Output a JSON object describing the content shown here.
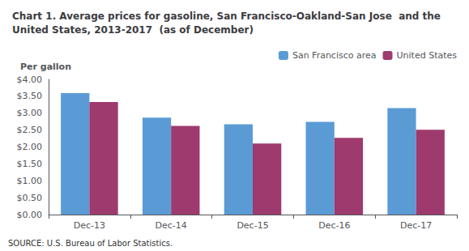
{
  "chart_data": {
    "type": "bar",
    "title": "Chart 1. Average prices for gasoline, San Francisco-Oakland-San Jose  and the\nUnited States, 2013-2017  (as of December)",
    "ylabel": "Per gallon",
    "source": "SOURCE: U.S. Bureau of Labor Statistics.",
    "categories": [
      "Dec-13",
      "Dec-14",
      "Dec-15",
      "Dec-16",
      "Dec-17"
    ],
    "series": [
      {
        "name": "San Francisco area",
        "color": "#5B9BD5",
        "values": [
          3.59,
          2.87,
          2.67,
          2.74,
          3.15
        ]
      },
      {
        "name": "United States",
        "color": "#9E3A6E",
        "values": [
          3.33,
          2.62,
          2.1,
          2.27,
          2.51
        ]
      }
    ],
    "ylim": [
      0,
      4.0
    ],
    "yticks": [
      {
        "value": 0.0,
        "label": "$0.00"
      },
      {
        "value": 0.5,
        "label": "$0.50"
      },
      {
        "value": 1.0,
        "label": "$1.00"
      },
      {
        "value": 1.5,
        "label": "$1.50"
      },
      {
        "value": 2.0,
        "label": "$2.00"
      },
      {
        "value": 2.5,
        "label": "$2.50"
      },
      {
        "value": 3.0,
        "label": "$3.00"
      },
      {
        "value": 3.5,
        "label": "$3.50"
      },
      {
        "value": 4.0,
        "label": "$4.00"
      }
    ],
    "grid": false,
    "legend": "upper right"
  }
}
